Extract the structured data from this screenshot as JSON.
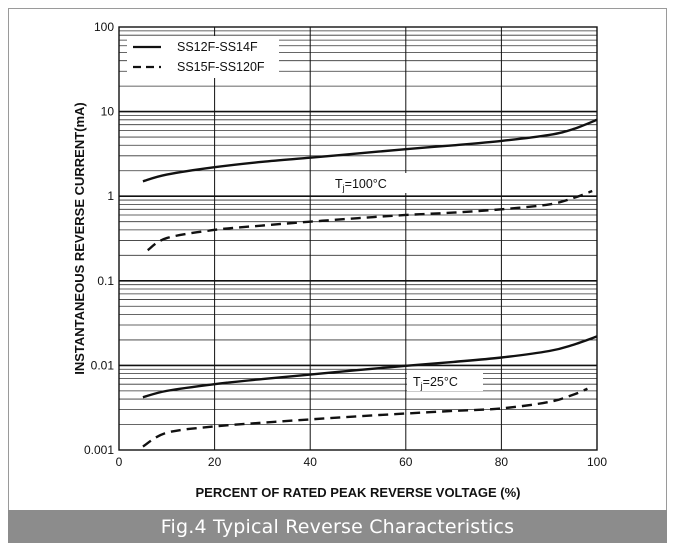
{
  "caption": "Fig.4 Typical Reverse Characteristics",
  "chart_data": {
    "type": "line",
    "xlabel": "PERCENT OF RATED PEAK REVERSE VOLTAGE (%)",
    "ylabel": "INSTANTANEOUS REVERSE CURRENT(mA)",
    "yscale": "log",
    "xlim": [
      0,
      100
    ],
    "ylim": [
      0.001,
      100
    ],
    "x_ticks": [
      "0",
      "20",
      "40",
      "60",
      "80",
      "100"
    ],
    "y_ticks": [
      "0.001",
      "0.01",
      "0.1",
      "1",
      "10",
      "100"
    ],
    "grid": true,
    "legend_position": "top-left",
    "legend": [
      {
        "name": "SS12F-SS14F",
        "style": "solid"
      },
      {
        "name": "SS15F-SS120F",
        "style": "dashed"
      }
    ],
    "annotations": [
      {
        "main": "T",
        "sub": "j",
        "rest": "=100°C"
      },
      {
        "main": "T",
        "sub": "j",
        "rest": "=25°C"
      }
    ],
    "series": [
      {
        "legend_index": 0,
        "style": "solid",
        "condition": "Tj=100°C",
        "x": [
          5,
          10,
          20,
          30,
          40,
          50,
          60,
          70,
          80,
          90,
          95,
          100
        ],
        "y": [
          1.5,
          1.8,
          2.2,
          2.55,
          2.85,
          3.2,
          3.6,
          4.0,
          4.5,
          5.3,
          6.2,
          8.0
        ]
      },
      {
        "legend_index": 1,
        "style": "dashed",
        "condition": "Tj=100°C",
        "x": [
          6,
          10,
          20,
          30,
          40,
          50,
          60,
          70,
          80,
          90,
          95,
          99
        ],
        "y": [
          0.23,
          0.32,
          0.4,
          0.45,
          0.5,
          0.55,
          0.6,
          0.64,
          0.7,
          0.8,
          0.95,
          1.15
        ]
      },
      {
        "legend_index": 0,
        "style": "solid",
        "condition": "Tj=25°C",
        "x": [
          5,
          10,
          20,
          30,
          40,
          50,
          60,
          70,
          80,
          90,
          95,
          100
        ],
        "y": [
          0.0042,
          0.005,
          0.006,
          0.0069,
          0.0078,
          0.0088,
          0.0099,
          0.011,
          0.0124,
          0.0148,
          0.0175,
          0.022
        ]
      },
      {
        "legend_index": 1,
        "style": "dashed",
        "condition": "Tj=25°C",
        "x": [
          5,
          10,
          20,
          30,
          40,
          50,
          60,
          70,
          80,
          90,
          95,
          98
        ],
        "y": [
          0.0011,
          0.0016,
          0.0019,
          0.0021,
          0.0023,
          0.0025,
          0.0027,
          0.0029,
          0.0031,
          0.0037,
          0.0045,
          0.0053
        ]
      }
    ]
  }
}
